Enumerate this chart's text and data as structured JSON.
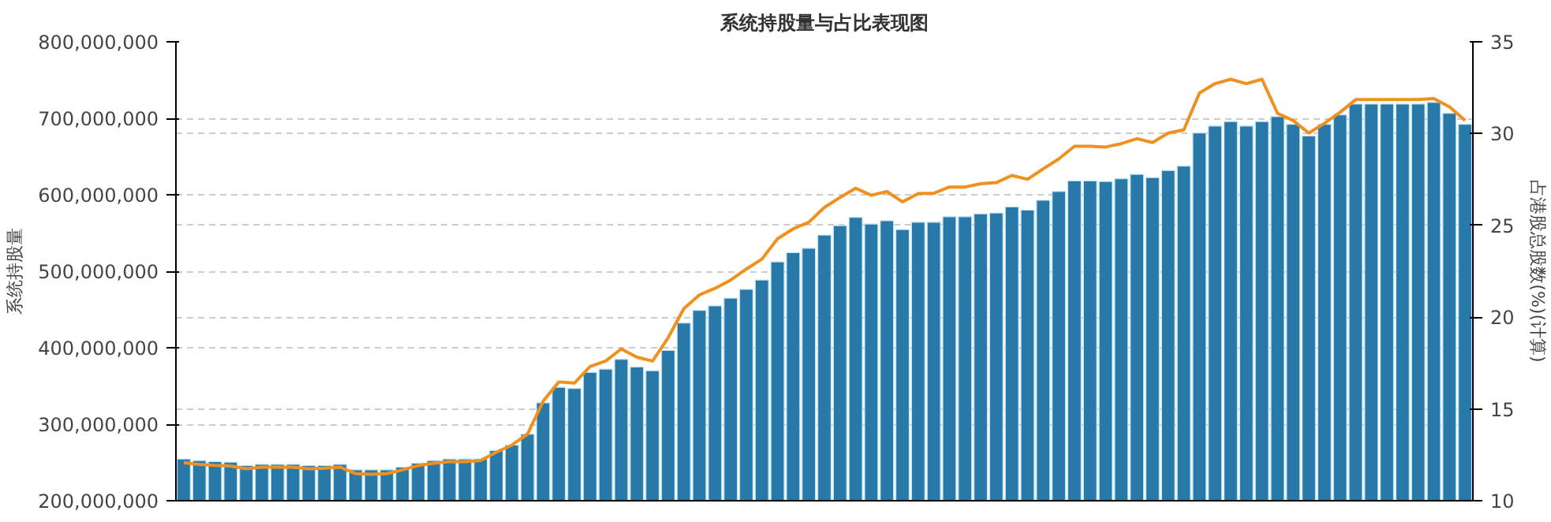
{
  "chart_data": {
    "type": "bar",
    "title": "系统持股量与占比表现图",
    "ylabel": "系统持股量",
    "y2label": "占港股总股数(%)(计算)",
    "categories": [
      null,
      null,
      null,
      null,
      null,
      null,
      null,
      null,
      null,
      null,
      null,
      null,
      null,
      null,
      null,
      null,
      null,
      null,
      null,
      null,
      null,
      null,
      null,
      null,
      null,
      null,
      null,
      null,
      null,
      null,
      null,
      null,
      null,
      null,
      null,
      null,
      null,
      null,
      null,
      null,
      null,
      null,
      null,
      null,
      null,
      null,
      null,
      null,
      null,
      null,
      null,
      null,
      null,
      null,
      null,
      null,
      null,
      null,
      null,
      null,
      null,
      null,
      null,
      null,
      null,
      null,
      null,
      null,
      null,
      null,
      null,
      null,
      null,
      null,
      null,
      null,
      null,
      null,
      null,
      null,
      null,
      null,
      null
    ],
    "series": [
      {
        "color": "#2878a8",
        "values": [
          254600000,
          252500000,
          251200000,
          250400000,
          246000000,
          247500000,
          247500000,
          247500000,
          246000000,
          246000000,
          247500000,
          240400000,
          240400000,
          240400000,
          243900000,
          249000000,
          252500000,
          254600000,
          254600000,
          254600000,
          265500000,
          272800000,
          287000000,
          328000000,
          348300000,
          346800000,
          367800000,
          372100000,
          385000000,
          374900000,
          369900000,
          396500000,
          432400000,
          448900000,
          454700000,
          464900000,
          476300000,
          488600000,
          512300000,
          524400000,
          530100000,
          547300000,
          559600000,
          570400000,
          561800000,
          566100000,
          554600000,
          564100000,
          564100000,
          571300000,
          571300000,
          575000000,
          576200000,
          584200000,
          579900000,
          592800000,
          604300000,
          618100000,
          618100000,
          617300000,
          620900000,
          626700000,
          622400000,
          631700000,
          637500000,
          680700000,
          689900000,
          695700000,
          689900000,
          695700000,
          702200000,
          692100000,
          677000000,
          692100000,
          704400000,
          718600000,
          718600000,
          718600000,
          718600000,
          718600000,
          720800000,
          706600000,
          692100000
        ]
      },
      {
        "type": "line",
        "axis": "y2",
        "color": "#f0901e",
        "values": [
          12.07,
          11.98,
          11.92,
          11.89,
          11.74,
          11.83,
          11.83,
          11.83,
          11.74,
          11.77,
          11.83,
          11.47,
          11.44,
          11.47,
          11.68,
          11.92,
          12.04,
          12.13,
          12.13,
          12.19,
          12.64,
          13.03,
          13.63,
          15.42,
          16.47,
          16.41,
          17.31,
          17.61,
          18.27,
          17.82,
          17.61,
          18.88,
          20.46,
          21.21,
          21.57,
          22.02,
          22.62,
          23.16,
          24.27,
          24.81,
          25.17,
          25.98,
          26.52,
          27.02,
          26.64,
          26.84,
          26.28,
          26.73,
          26.75,
          27.09,
          27.09,
          27.27,
          27.33,
          27.72,
          27.51,
          28.08,
          28.62,
          29.31,
          29.31,
          29.27,
          29.45,
          29.72,
          29.51,
          30.03,
          30.2,
          32.21,
          32.72,
          32.96,
          32.72,
          32.96,
          31.1,
          30.71,
          30.03,
          30.56,
          31.16,
          31.85,
          31.85,
          31.85,
          31.85,
          31.85,
          31.91,
          31.46,
          30.71
        ]
      }
    ],
    "ylim": [
      200000000,
      800000000
    ],
    "yticks": [
      {
        "value": 200000000,
        "label": "200,000,000"
      },
      {
        "value": 300000000,
        "label": "300,000,000"
      },
      {
        "value": 400000000,
        "label": "400,000,000"
      },
      {
        "value": 500000000,
        "label": "500,000,000"
      },
      {
        "value": 600000000,
        "label": "600,000,000"
      },
      {
        "value": 700000000,
        "label": "700,000,000"
      },
      {
        "value": 800000000,
        "label": "800,000,000"
      }
    ],
    "y2lim": [
      10,
      35
    ],
    "y2ticks": [
      10,
      15,
      20,
      25,
      30,
      35
    ],
    "grid": "y",
    "marker": "none",
    "line_style": "solid"
  }
}
